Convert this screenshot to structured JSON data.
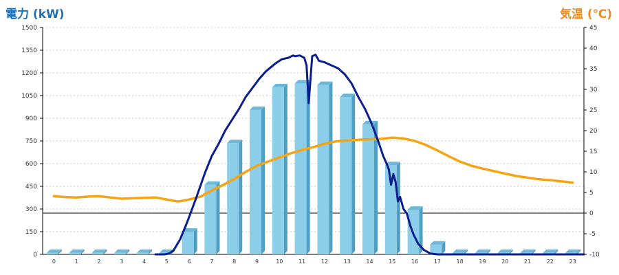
{
  "chart_data": {
    "type": "bar",
    "y_left_title": "電力 (kW)",
    "y_right_title": "気温 (℃)",
    "categories": [
      "0",
      "1",
      "2",
      "3",
      "4",
      "5",
      "6",
      "7",
      "8",
      "9",
      "10",
      "11",
      "12",
      "13",
      "14",
      "15",
      "16",
      "17",
      "18",
      "19",
      "20",
      "21",
      "22",
      "23"
    ],
    "y_left_range": [
      0,
      1500
    ],
    "y_left_ticks": [
      "0",
      "150",
      "300",
      "450",
      "600",
      "750",
      "900",
      "1050",
      "1200",
      "1350",
      "1500"
    ],
    "y_right_range": [
      -10,
      45
    ],
    "y_right_ticks": [
      "-10",
      "-5",
      "0",
      "5",
      "10",
      "15",
      "20",
      "25",
      "30",
      "35",
      "40",
      "45"
    ],
    "grid": true,
    "zero_line_temperature": 0,
    "colors": {
      "bar_front": "#8ccde9",
      "bar_side": "#4f9fc4",
      "bar_top": "#6db7d8",
      "power_line": "#0b1e8c",
      "temperature_line": "#f5a414",
      "left_title": "#1f6fb5",
      "right_title": "#f08a1d"
    },
    "series": [
      {
        "kind": "bar",
        "axis": "left",
        "values": [
          10,
          10,
          10,
          10,
          10,
          10,
          150,
          460,
          735,
          955,
          1105,
          1130,
          1120,
          1040,
          860,
          590,
          295,
          65,
          10,
          10,
          10,
          10,
          10,
          10
        ]
      },
      {
        "kind": "line",
        "axis": "left",
        "x": [
          4.5,
          4.9,
          5.1,
          5.3,
          5.6,
          5.9,
          6.3,
          6.7,
          7.0,
          7.3,
          7.6,
          7.9,
          8.2,
          8.5,
          8.8,
          9.1,
          9.4,
          9.8,
          10.1,
          10.4,
          10.6,
          10.7,
          10.9,
          11.1,
          11.2,
          11.3,
          11.45,
          11.6,
          11.75,
          12.0,
          12.3,
          12.6,
          12.9,
          13.2,
          13.5,
          13.8,
          14.1,
          14.4,
          14.6,
          14.75,
          14.85,
          14.95,
          15.05,
          15.15,
          15.25,
          15.35,
          15.5,
          15.65,
          15.8,
          15.95,
          16.15,
          16.4,
          16.7,
          17.0,
          17.3,
          17.6,
          18.0,
          23.5
        ],
        "y": [
          0,
          0,
          5,
          25,
          100,
          210,
          370,
          540,
          650,
          730,
          820,
          890,
          960,
          1040,
          1100,
          1160,
          1210,
          1260,
          1290,
          1300,
          1315,
          1310,
          1315,
          1300,
          1250,
          1000,
          1310,
          1320,
          1280,
          1270,
          1250,
          1230,
          1190,
          1130,
          1040,
          960,
          860,
          740,
          650,
          600,
          560,
          460,
          530,
          480,
          350,
          380,
          300,
          270,
          190,
          130,
          70,
          30,
          5,
          0,
          0,
          0,
          0,
          0
        ]
      },
      {
        "kind": "line",
        "axis": "right",
        "x": [
          0,
          0.5,
          1,
          1.5,
          2,
          2.5,
          3,
          3.5,
          4,
          4.5,
          5,
          5.5,
          6,
          6.5,
          7,
          7.5,
          8,
          8.5,
          9,
          9.5,
          10,
          10.5,
          11,
          11.5,
          12,
          12.5,
          13,
          13.5,
          14,
          14.5,
          15,
          15.5,
          16,
          16.5,
          17,
          17.5,
          18,
          18.5,
          19,
          19.5,
          20,
          20.5,
          21,
          21.5,
          22,
          22.5,
          23
        ],
        "y": [
          4.1,
          3.9,
          3.8,
          4.0,
          4.1,
          3.8,
          3.5,
          3.6,
          3.7,
          3.8,
          3.3,
          2.8,
          3.3,
          4.0,
          5.5,
          6.8,
          8.3,
          10.0,
          11.5,
          12.5,
          13.5,
          14.5,
          15.3,
          16.0,
          16.8,
          17.4,
          17.6,
          17.8,
          17.9,
          18.0,
          18.3,
          18.1,
          17.5,
          16.5,
          15.2,
          13.8,
          12.5,
          11.5,
          10.8,
          10.2,
          9.6,
          9.0,
          8.6,
          8.2,
          8.0,
          7.7,
          7.4
        ]
      }
    ]
  }
}
